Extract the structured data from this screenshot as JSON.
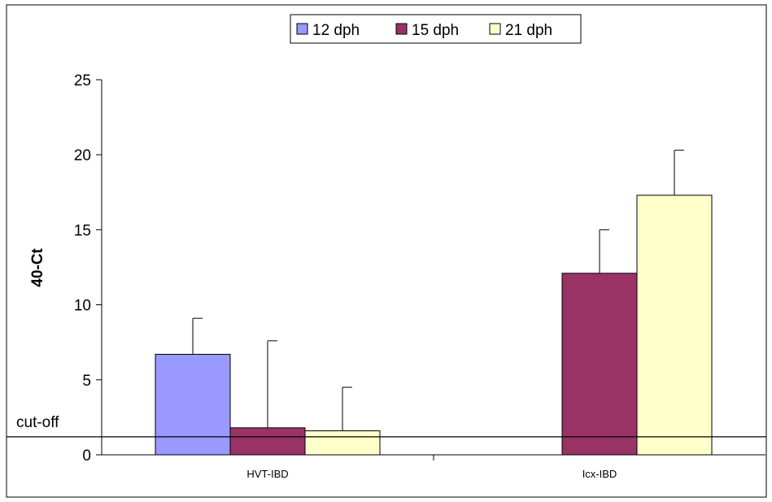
{
  "chart_data": {
    "type": "bar",
    "categories": [
      "HVT-IBD",
      "Icx-IBD"
    ],
    "series": [
      {
        "name": "12 dph",
        "color": "#9999ff",
        "values": [
          6.7,
          0
        ],
        "errors": [
          2.4,
          0
        ]
      },
      {
        "name": "15 dph",
        "color": "#993366",
        "values": [
          1.8,
          12.1
        ],
        "errors": [
          5.8,
          2.9
        ]
      },
      {
        "name": "21 dph",
        "color": "#ffffcc",
        "values": [
          1.6,
          17.3
        ],
        "errors": [
          2.9,
          3.0
        ]
      }
    ],
    "ylabel": "40-Ct",
    "xlabel": "",
    "ylim": [
      0,
      25
    ],
    "yticks": [
      "0",
      "5",
      "10",
      "15",
      "20",
      "25"
    ],
    "grid": false,
    "legend_position": "top-center",
    "annotations": [
      {
        "text": "cut-off",
        "y": 1.2
      }
    ]
  }
}
